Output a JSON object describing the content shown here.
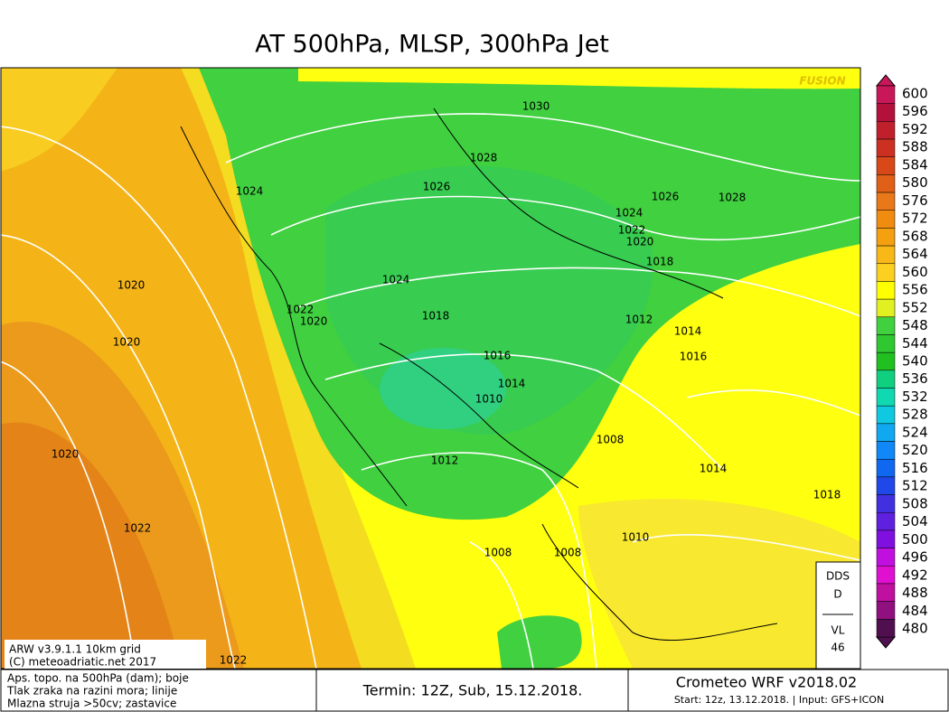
{
  "header": {
    "title": "AT 500hPa, MLSP, 300hPa Jet",
    "brand": "FUSION"
  },
  "isobar_labels": [
    1030,
    1028,
    1026,
    1024,
    1026,
    1028,
    1024,
    1022,
    1020,
    1018,
    1024,
    1020,
    1022,
    1020,
    1018,
    1012,
    1014,
    1020,
    1016,
    1016,
    1014,
    1010,
    1008,
    1020,
    1012,
    1014,
    1018,
    1022,
    1010,
    1008,
    1008,
    1022
  ],
  "legend": {
    "levels": [
      {
        "value": 600,
        "color": "#c8185a"
      },
      {
        "value": 596,
        "color": "#b4103c"
      },
      {
        "value": 592,
        "color": "#c0202c"
      },
      {
        "value": 588,
        "color": "#cc3020"
      },
      {
        "value": 584,
        "color": "#d84818"
      },
      {
        "value": 580,
        "color": "#e06018"
      },
      {
        "value": 576,
        "color": "#e87818"
      },
      {
        "value": 572,
        "color": "#f08c10"
      },
      {
        "value": 568,
        "color": "#f4a010"
      },
      {
        "value": 564,
        "color": "#f8b818"
      },
      {
        "value": 560,
        "color": "#fcd020"
      },
      {
        "value": 556,
        "color": "#ffff00"
      },
      {
        "value": 552,
        "color": "#e0f020"
      },
      {
        "value": 548,
        "color": "#40d040"
      },
      {
        "value": 544,
        "color": "#30c830"
      },
      {
        "value": 540,
        "color": "#20c020"
      },
      {
        "value": 536,
        "color": "#10d080"
      },
      {
        "value": 532,
        "color": "#10d8b0"
      },
      {
        "value": 528,
        "color": "#10c8e0"
      },
      {
        "value": 524,
        "color": "#10a8f0"
      },
      {
        "value": 520,
        "color": "#1088f8"
      },
      {
        "value": 516,
        "color": "#1068f0"
      },
      {
        "value": 512,
        "color": "#2048e8"
      },
      {
        "value": 508,
        "color": "#4030e0"
      },
      {
        "value": 504,
        "color": "#6020e0"
      },
      {
        "value": 500,
        "color": "#8010e0"
      },
      {
        "value": 496,
        "color": "#c010e0"
      },
      {
        "value": 492,
        "color": "#e010d0"
      },
      {
        "value": 488,
        "color": "#c010a0"
      },
      {
        "value": 484,
        "color": "#901080"
      },
      {
        "value": 480,
        "color": "#501050"
      }
    ]
  },
  "model_box": {
    "lines": [
      "ARW v3.9.1.1 10km grid",
      "(C) meteoadriatic.net 2017"
    ]
  },
  "index_box": {
    "lines": [
      "DDS",
      "D",
      "VL",
      "46"
    ]
  },
  "footer": {
    "description": [
      "Aps. topo. na 500hPa (dam); boje",
      "Tlak zraka na razini mora; linije",
      "Mlazna struja >50cv; zastavice"
    ],
    "run": "Termin: 12Z, Sub, 15.12.2018.",
    "product": "Crometeo WRF v2018.02",
    "start": "Start: 12z, 13.12.2018. | Input: GFS+ICON"
  }
}
